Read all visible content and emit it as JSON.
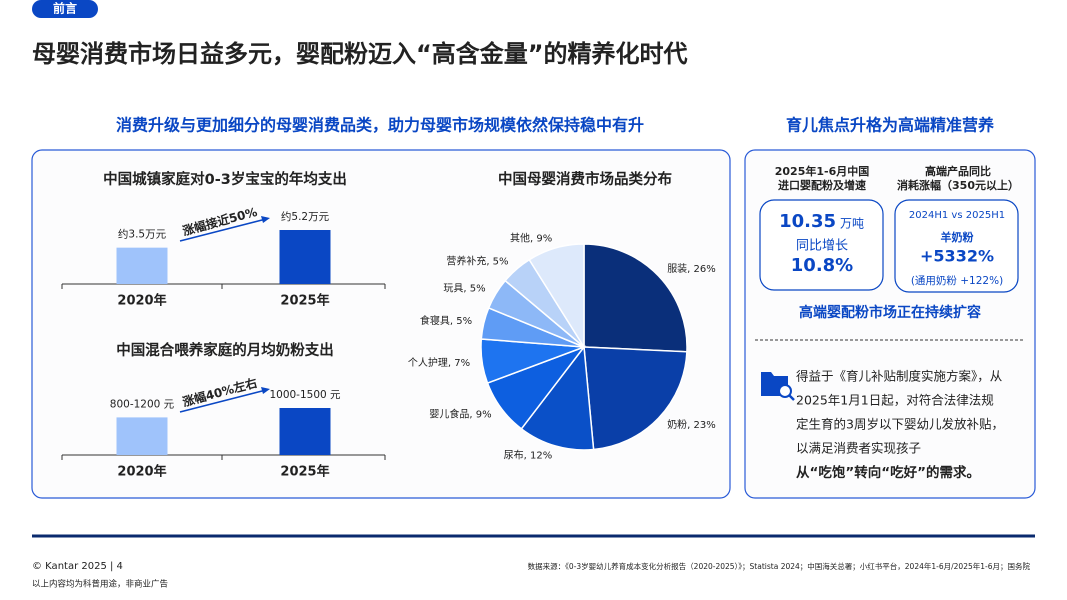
{
  "header": {
    "tag": "前言",
    "title": "母婴消费市场日益多元，婴配粉迈入“高含金量”的精养化时代"
  },
  "left_panel": {
    "heading": "消费升级与更加细分的母婴消费品类，助力母婴市场规模依然保持稳中有升"
  },
  "chart_data": [
    {
      "type": "bar",
      "title": "中国城镇家庭对0-3岁宝宝的年均支出",
      "categories": [
        "2020年",
        "2025年"
      ],
      "values": [
        3.5,
        5.2
      ],
      "value_labels": [
        "约3.5万元",
        "约5.2万元"
      ],
      "colors": [
        "#9fc3fb",
        "#0a47c4"
      ],
      "annotation": "涨幅接近50%"
    },
    {
      "type": "bar",
      "title": "中国混合喂养家庭的月均奶粉支出",
      "categories": [
        "2020年",
        "2025年"
      ],
      "values": [
        1200,
        1500
      ],
      "value_labels": [
        "800-1200 元",
        "1000-1500 元"
      ],
      "colors": [
        "#9fc3fb",
        "#0a47c4"
      ],
      "annotation": "涨幅40%左右"
    },
    {
      "type": "pie",
      "title": "中国母婴消费市场品类分布",
      "categories": [
        "服装",
        "奶粉",
        "尿布",
        "婴儿食品",
        "个人护理",
        "食寝具",
        "玩具",
        "营养补充",
        "其他"
      ],
      "values": [
        26,
        23,
        12,
        9,
        7,
        5,
        5,
        5,
        9
      ],
      "value_labels": [
        "服装, 26%",
        "奶粉, 23%",
        "尿布, 12%",
        "婴儿食品, 9%",
        "个人护理, 7%",
        "食寝具, 5%",
        "玩具, 5%",
        "营养补充, 5%",
        "其他, 9%"
      ],
      "colors": [
        "#0a2f7a",
        "#0a3fa8",
        "#0a50c8",
        "#0d5fe0",
        "#1e74f0",
        "#5f9cf5",
        "#8db8f7",
        "#b8d2f8",
        "#dde9fb"
      ]
    }
  ],
  "right_panel": {
    "heading": "育儿焦点升格为高端精准营养",
    "stat1": {
      "header": [
        "2025年1-6月中国",
        "进口婴配粉及增速"
      ],
      "value": "10.35",
      "unit": "万吨",
      "growth_label": "同比增长",
      "growth": "10.8%"
    },
    "stat2": {
      "header": [
        "高端产品同比",
        "消耗涨幅（350元以上）"
      ],
      "period": "2024H1 vs 2025H1",
      "product": "羊奶粉",
      "growth": "+5332%",
      "note": "(通用奶粉 +122%)"
    },
    "conclusion": "高端婴配粉市场正在持续扩容",
    "body": [
      "得益于《育儿补贴制度实施方案》，从",
      "2025年1月1日起，对符合法律法规",
      "定生育的3周岁以下婴幼儿发放补贴，",
      "以满足消费者实现孩子"
    ],
    "emphasis": "从“吃饱”转向“吃好”的需求。"
  },
  "footer": {
    "copyright": "© Kantar 2025 | 4",
    "disclaimer": "以上内容均为科普用途，非商业广告",
    "source": "数据来源：《0-3岁婴幼儿养育成本变化分析报告（2020-2025）》；Statista 2024；中国海关总署；小红书平台，2024年1-6月/2025年1-6月；国务院"
  }
}
